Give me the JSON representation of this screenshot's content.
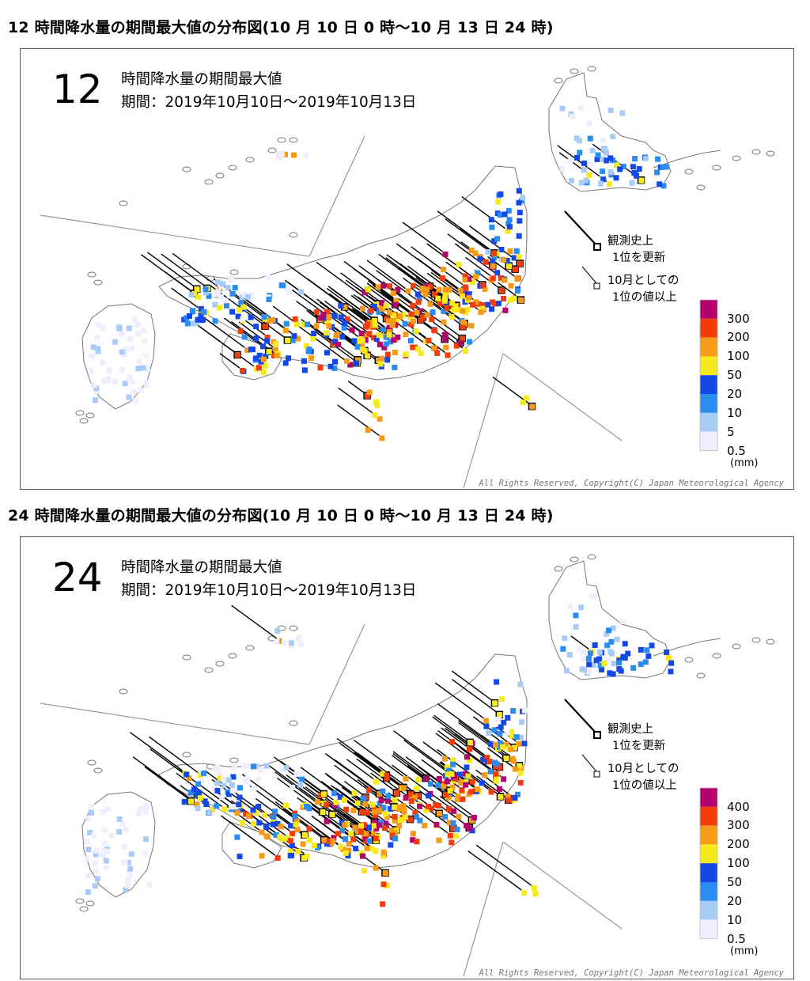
{
  "maps": [
    {
      "heading": "12 時間降水量の期間最大値の分布図(10 月 10 日 0 時～10 月 13 日 24 時)",
      "big_label": "12",
      "title": "時間降水量の期間最大値",
      "period": "期間：2019年10月10日～2019年10月13日",
      "legend_values": [
        "300",
        "200",
        "100",
        "50",
        "20",
        "10",
        "5",
        "0.5"
      ],
      "legend_unit": "(mm)",
      "legend_record_all": [
        "観測史上",
        "1位を更新"
      ],
      "legend_record_month": [
        "10月としての",
        "1位の値以上"
      ],
      "copyright": "All Rights Reserved, Copyright(C) Japan Meteorological Agency"
    },
    {
      "heading": "24 時間降水量の期間最大値の分布図(10 月 10 日 0 時～10 月 13 日 24 時)",
      "big_label": "24",
      "title": "時間降水量の期間最大値",
      "period": "期間：2019年10月10日～2019年10月13日",
      "legend_values": [
        "400",
        "300",
        "200",
        "100",
        "50",
        "20",
        "10",
        "0.5"
      ],
      "legend_unit": "(mm)",
      "legend_record_all": [
        "観測史上",
        "1位を更新"
      ],
      "legend_record_month": [
        "10月としての",
        "1位の値以上"
      ],
      "copyright": "All Rights Reserved, Copyright(C) Japan Meteorological Agency"
    }
  ],
  "colors": {
    "class_0": "#eeeeff",
    "class_1": "#a9ccf6",
    "class_2": "#2b8cf0",
    "class_3": "#1448e6",
    "class_4": "#f6ea1c",
    "class_5": "#f59b18",
    "class_6": "#f23c0a",
    "class_7": "#b4006d"
  }
}
